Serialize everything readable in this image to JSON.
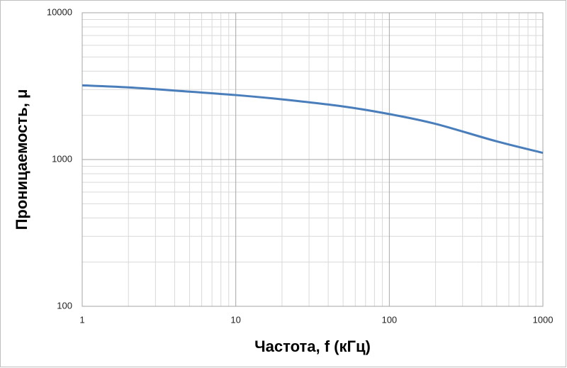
{
  "chart_data": {
    "type": "line",
    "x_label": "Частота, f (кГц)",
    "y_label": "Проницаемость, μ",
    "x": [
      1,
      2,
      5,
      10,
      20,
      50,
      100,
      200,
      500,
      1000
    ],
    "series": [
      {
        "color": "#4a7ebb",
        "values": [
          3200,
          3100,
          2900,
          2750,
          2570,
          2300,
          2040,
          1750,
          1330,
          1110
        ]
      }
    ],
    "xlog": true,
    "ylog": true,
    "xlim": [
      1,
      1000
    ],
    "ylim": [
      100,
      10000
    ],
    "xticks": [
      1,
      10,
      100,
      1000
    ],
    "yticks": [
      100,
      1000,
      10000
    ],
    "grid": true,
    "minor_grid": true
  }
}
